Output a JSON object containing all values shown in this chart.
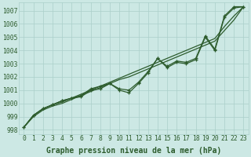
{
  "x": [
    0,
    1,
    2,
    3,
    4,
    5,
    6,
    7,
    8,
    9,
    10,
    11,
    12,
    13,
    14,
    15,
    16,
    17,
    18,
    19,
    20,
    21,
    22,
    23
  ],
  "line_straight1": [
    998.2,
    999.1,
    999.6,
    999.9,
    1000.1,
    1000.4,
    1000.7,
    1001.0,
    1001.3,
    1001.6,
    1001.9,
    1002.2,
    1002.5,
    1002.8,
    1003.1,
    1003.4,
    1003.7,
    1004.0,
    1004.3,
    1004.6,
    1004.9,
    1005.8,
    1006.6,
    1007.3
  ],
  "line_straight2": [
    998.2,
    999.0,
    999.5,
    999.8,
    1000.0,
    1000.3,
    1000.6,
    1000.9,
    1001.2,
    1001.5,
    1001.8,
    1002.0,
    1002.3,
    1002.6,
    1002.9,
    1003.2,
    1003.5,
    1003.8,
    1004.1,
    1004.4,
    1004.7,
    1005.5,
    1006.3,
    1007.3
  ],
  "line_marked1": [
    998.2,
    999.1,
    999.6,
    999.9,
    1000.2,
    1000.4,
    1000.5,
    1001.0,
    1001.1,
    1001.5,
    1001.0,
    1000.8,
    1001.5,
    1002.3,
    1003.4,
    1002.7,
    1003.1,
    1003.0,
    1003.3,
    1005.0,
    1004.0,
    1006.5,
    1007.2,
    1007.3
  ],
  "line_marked2": [
    998.2,
    999.1,
    999.6,
    999.9,
    1000.2,
    1000.4,
    1000.6,
    1001.1,
    1001.3,
    1001.5,
    1001.1,
    1001.0,
    1001.6,
    1002.4,
    1003.4,
    1002.8,
    1003.2,
    1003.1,
    1003.4,
    1005.1,
    1004.1,
    1006.6,
    1007.3,
    1007.3
  ],
  "background_color": "#cce8e4",
  "grid_color": "#aacfca",
  "line_color": "#2d5c2d",
  "ylabel_values": [
    998,
    999,
    1000,
    1001,
    1002,
    1003,
    1004,
    1005,
    1006,
    1007
  ],
  "xlabel": "Graphe pression niveau de la mer (hPa)",
  "xlim": [
    -0.5,
    23.5
  ],
  "ylim": [
    997.7,
    1007.6
  ],
  "label_fontsize": 7,
  "tick_fontsize": 5.8
}
